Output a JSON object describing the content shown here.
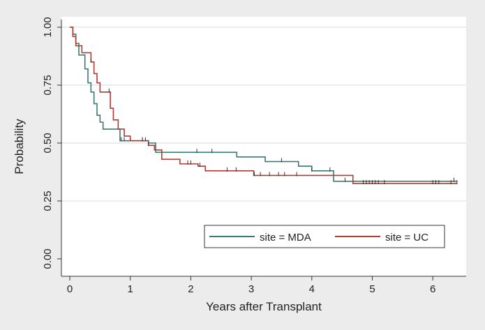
{
  "chart_data": {
    "type": "line",
    "subtype": "kaplan-meier step",
    "title": "",
    "xlabel": "Years after Transplant",
    "ylabel": "Probability",
    "xlim": [
      0,
      6.5
    ],
    "ylim": [
      0,
      1
    ],
    "xticks": [
      "0",
      "1",
      "2",
      "3",
      "4",
      "5",
      "6"
    ],
    "yticks": [
      "0.00",
      "0.25",
      "0.50",
      "0.75",
      "1.00"
    ],
    "grid": "horizontal",
    "legend_position": "bottom-right inside",
    "series": [
      {
        "name": "site = MDA",
        "color": "#3a7a72",
        "steps": [
          [
            0,
            1.0
          ],
          [
            0.05,
            0.97
          ],
          [
            0.1,
            0.93
          ],
          [
            0.15,
            0.88
          ],
          [
            0.25,
            0.82
          ],
          [
            0.3,
            0.76
          ],
          [
            0.35,
            0.72
          ],
          [
            0.4,
            0.67
          ],
          [
            0.45,
            0.62
          ],
          [
            0.5,
            0.59
          ],
          [
            0.55,
            0.56
          ],
          [
            0.83,
            0.51
          ],
          [
            1.3,
            0.5
          ],
          [
            1.42,
            0.46
          ],
          [
            2.76,
            0.44
          ],
          [
            3.23,
            0.42
          ],
          [
            3.78,
            0.4
          ],
          [
            4.0,
            0.38
          ],
          [
            4.36,
            0.335
          ]
        ],
        "end": 6.4,
        "censored": [
          0.85,
          0.9,
          1.2,
          2.1,
          2.35,
          3.5,
          4.0,
          4.3,
          4.55,
          6.35
        ]
      },
      {
        "name": "site = UC",
        "color": "#b03a34",
        "steps": [
          [
            0,
            1.0
          ],
          [
            0.05,
            0.96
          ],
          [
            0.1,
            0.92
          ],
          [
            0.2,
            0.89
          ],
          [
            0.35,
            0.85
          ],
          [
            0.4,
            0.8
          ],
          [
            0.45,
            0.76
          ],
          [
            0.5,
            0.72
          ],
          [
            0.67,
            0.65
          ],
          [
            0.72,
            0.6
          ],
          [
            0.8,
            0.56
          ],
          [
            0.9,
            0.53
          ],
          [
            1.0,
            0.51
          ],
          [
            1.3,
            0.49
          ],
          [
            1.4,
            0.47
          ],
          [
            1.52,
            0.43
          ],
          [
            1.82,
            0.41
          ],
          [
            2.12,
            0.4
          ],
          [
            2.24,
            0.38
          ],
          [
            3.04,
            0.36
          ],
          [
            4.68,
            0.325
          ]
        ],
        "end": 6.4,
        "censored": [
          0.35,
          0.65,
          1.2,
          1.25,
          1.3,
          1.95,
          2.0,
          2.15,
          2.6,
          2.75,
          3.05,
          3.15,
          3.3,
          3.45,
          3.55,
          3.75,
          4.85,
          4.9,
          4.95,
          5.0,
          5.05,
          5.1,
          5.2,
          6.0,
          6.05,
          6.1,
          6.3,
          6.4
        ]
      }
    ]
  }
}
